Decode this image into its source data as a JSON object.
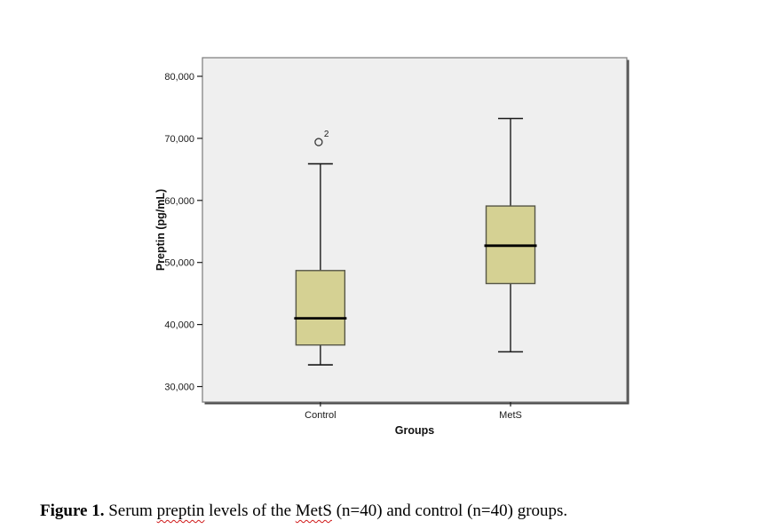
{
  "figure": {
    "caption_parts": [
      {
        "text": "Figure 1.",
        "bold": true,
        "squiggle": false
      },
      {
        "text": " Serum ",
        "bold": false,
        "squiggle": false
      },
      {
        "text": "preptin",
        "bold": false,
        "squiggle": true
      },
      {
        "text": " levels of the ",
        "bold": false,
        "squiggle": false
      },
      {
        "text": "MetS",
        "bold": false,
        "squiggle": true
      },
      {
        "text": " (n=40) and control (n=40) groups.",
        "bold": false,
        "squiggle": false
      }
    ]
  },
  "chart_data": {
    "type": "boxplot",
    "title": "",
    "xlabel": "Groups",
    "ylabel": "Preptin (pg/mL)",
    "ylim": [
      27500,
      83000
    ],
    "y_ticks": [
      30000,
      40000,
      50000,
      60000,
      70000,
      80000
    ],
    "y_tick_labels": [
      "30,000",
      "40,000",
      "50,000",
      "60,000",
      "70,000",
      "80,000"
    ],
    "categories": [
      "Control",
      "MetS"
    ],
    "series": [
      {
        "group": "Control",
        "min": 33500,
        "q1": 36700,
        "median": 41000,
        "q3": 48700,
        "max": 65900,
        "outliers": [
          {
            "value": 69400,
            "label": "2"
          }
        ]
      },
      {
        "group": "MetS",
        "min": 35600,
        "q1": 46600,
        "median": 52700,
        "q3": 59100,
        "max": 73200,
        "outliers": []
      }
    ],
    "legend": "none",
    "grid": "off",
    "colors": {
      "plot_background": "#efefef",
      "plot_border": "#7a7a7a",
      "plot_shadow": "#4a4a4a",
      "box_fill": "#d5d193",
      "box_border": "#565647",
      "line": "#1a1a1a",
      "squiggle": "#d01818"
    }
  }
}
